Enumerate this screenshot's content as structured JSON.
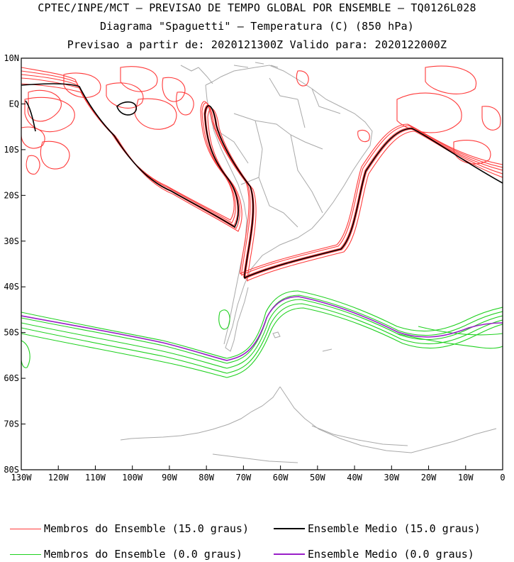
{
  "header": {
    "line1": "CPTEC/INPE/MCT – PREVISAO DE TEMPO GLOBAL POR ENSEMBLE – TQ0126L028",
    "line2": "Diagrama \"Spaguetti\" – Temperatura (C) (850 hPa)",
    "line3": "Previsao a partir de: 2020121300Z  Valido para: 2020122000Z"
  },
  "map": {
    "lat_labels": [
      "10N",
      "EQ",
      "10S",
      "20S",
      "30S",
      "40S",
      "50S",
      "60S",
      "70S",
      "80S"
    ],
    "lat_values": [
      10,
      0,
      -10,
      -20,
      -30,
      -40,
      -50,
      -60,
      -70,
      -80
    ],
    "lon_labels": [
      "130W",
      "120W",
      "110W",
      "100W",
      "90W",
      "80W",
      "70W",
      "60W",
      "50W",
      "40W",
      "30W",
      "20W",
      "10W",
      "0"
    ],
    "lon_values": [
      -130,
      -120,
      -110,
      -100,
      -90,
      -80,
      -70,
      -60,
      -50,
      -40,
      -30,
      -20,
      -10,
      0
    ],
    "lat_range": [
      -80,
      10
    ],
    "lon_range": [
      -130,
      0
    ],
    "coast_color": "#a9a9a9",
    "member_15_color": "#ff3a3a",
    "mean_15_color": "#000000",
    "member_0_color": "#1fd11f",
    "mean_0_color": "#9a1fc8"
  },
  "legend": {
    "items": [
      {
        "label": "Membros do Ensemble (15.0 graus)",
        "color": "#ff3a3a"
      },
      {
        "label": "Ensemble Medio (15.0 graus)",
        "color": "#000000"
      },
      {
        "label": "Membros do Ensemble (0.0 graus)",
        "color": "#1fd11f"
      },
      {
        "label": "Ensemble Medio (0.0 graus)",
        "color": "#9a1fc8"
      }
    ]
  }
}
